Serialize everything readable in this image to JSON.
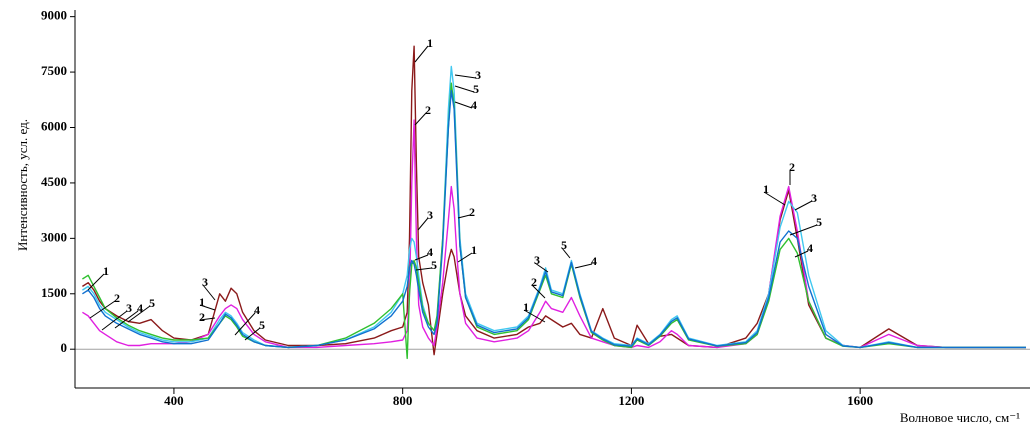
{
  "chart_data": {
    "type": "line",
    "x_label": "Волновое число,  см⁻¹",
    "y_label": "Интенсивность,  усл. ед.",
    "xlim": [
      227,
      1897
    ],
    "ylim": [
      -1050,
      9180
    ],
    "xticks": [
      400,
      800,
      1200,
      1600
    ],
    "yticks": [
      0,
      1500,
      3000,
      4500,
      6000,
      7500,
      9000
    ],
    "x": [
      240,
      250,
      260,
      270,
      280,
      300,
      320,
      340,
      360,
      380,
      400,
      430,
      460,
      480,
      490,
      500,
      510,
      520,
      540,
      560,
      600,
      650,
      700,
      750,
      780,
      800,
      808,
      812,
      816,
      820,
      824,
      828,
      835,
      845,
      855,
      860,
      870,
      880,
      885,
      890,
      895,
      900,
      910,
      930,
      960,
      1000,
      1020,
      1040,
      1050,
      1060,
      1080,
      1095,
      1110,
      1130,
      1150,
      1170,
      1200,
      1210,
      1230,
      1250,
      1270,
      1280,
      1300,
      1350,
      1400,
      1420,
      1440,
      1460,
      1475,
      1490,
      1510,
      1540,
      1570,
      1600,
      1650,
      1700,
      1750,
      1800,
      1850,
      1890
    ],
    "series": [
      {
        "name": "1",
        "color": "#8b1a1a",
        "values": [
          1700,
          1800,
          1600,
          1300,
          1100,
          900,
          750,
          700,
          800,
          500,
          300,
          250,
          400,
          1500,
          1300,
          1650,
          1500,
          1000,
          500,
          250,
          100,
          100,
          150,
          300,
          500,
          600,
          1000,
          3000,
          7000,
          8200,
          5000,
          2500,
          1800,
          1200,
          -150,
          400,
          1500,
          2400,
          2700,
          2500,
          2000,
          1500,
          900,
          500,
          300,
          400,
          600,
          700,
          900,
          800,
          600,
          700,
          400,
          300,
          1100,
          300,
          100,
          650,
          150,
          350,
          400,
          300,
          100,
          50,
          300,
          700,
          1500,
          3500,
          4300,
          3000,
          1200,
          300,
          100,
          50,
          550,
          100,
          50,
          50,
          50,
          50
        ]
      },
      {
        "name": "2",
        "color": "#e020e0",
        "values": [
          1000,
          900,
          700,
          500,
          400,
          200,
          100,
          100,
          150,
          150,
          150,
          200,
          400,
          900,
          1100,
          1200,
          1100,
          800,
          400,
          200,
          50,
          50,
          100,
          150,
          200,
          250,
          500,
          1500,
          4500,
          6200,
          3000,
          1200,
          600,
          300,
          100,
          600,
          1800,
          3500,
          4400,
          3800,
          2500,
          1500,
          700,
          300,
          200,
          300,
          500,
          1000,
          1300,
          1100,
          1000,
          1400,
          900,
          300,
          200,
          100,
          50,
          100,
          50,
          200,
          500,
          400,
          100,
          50,
          150,
          400,
          1500,
          3600,
          4400,
          3200,
          1300,
          300,
          100,
          50,
          400,
          100,
          50,
          50,
          50,
          50
        ]
      },
      {
        "name": "3",
        "color": "#40c8f0",
        "values": [
          1600,
          1700,
          1500,
          1200,
          1000,
          800,
          600,
          450,
          350,
          250,
          200,
          200,
          300,
          800,
          1000,
          900,
          700,
          450,
          250,
          100,
          50,
          100,
          250,
          600,
          1000,
          1500,
          2000,
          2700,
          3000,
          2900,
          2500,
          2000,
          1200,
          700,
          500,
          800,
          3000,
          6500,
          7650,
          7000,
          5000,
          3000,
          1500,
          700,
          500,
          600,
          900,
          1700,
          2200,
          1600,
          1500,
          2400,
          1500,
          500,
          300,
          150,
          100,
          300,
          150,
          400,
          800,
          900,
          300,
          100,
          200,
          500,
          1500,
          3300,
          4000,
          3700,
          2000,
          500,
          100,
          50,
          200,
          50,
          50,
          50,
          50,
          50
        ]
      },
      {
        "name": "4",
        "color": "#30c030",
        "values": [
          1900,
          2000,
          1700,
          1400,
          1100,
          850,
          650,
          500,
          400,
          300,
          250,
          250,
          300,
          700,
          900,
          800,
          600,
          350,
          200,
          100,
          50,
          100,
          300,
          700,
          1100,
          1500,
          -250,
          1500,
          2300,
          2400,
          2200,
          1800,
          1100,
          700,
          500,
          900,
          3000,
          6000,
          7200,
          6600,
          4800,
          2800,
          1400,
          600,
          400,
          500,
          800,
          1600,
          2000,
          1500,
          1400,
          2300,
          1400,
          450,
          250,
          100,
          50,
          250,
          100,
          350,
          700,
          800,
          250,
          80,
          150,
          400,
          1300,
          2700,
          3000,
          2600,
          1300,
          300,
          80,
          50,
          150,
          50,
          50,
          50,
          50,
          50
        ]
      },
      {
        "name": "5",
        "color": "#1070d0",
        "values": [
          1500,
          1600,
          1400,
          1100,
          900,
          700,
          550,
          400,
          300,
          200,
          150,
          150,
          250,
          700,
          950,
          850,
          650,
          400,
          200,
          100,
          50,
          100,
          250,
          550,
          900,
          1300,
          1700,
          2200,
          2400,
          2300,
          2000,
          1600,
          1000,
          600,
          400,
          700,
          2800,
          6000,
          7000,
          6500,
          4600,
          2800,
          1400,
          650,
          450,
          550,
          850,
          1650,
          2100,
          1550,
          1450,
          2350,
          1450,
          480,
          280,
          120,
          80,
          280,
          120,
          380,
          750,
          850,
          280,
          90,
          180,
          450,
          1400,
          2900,
          3200,
          3000,
          1700,
          400,
          90,
          50,
          180,
          50,
          50,
          50,
          50,
          50
        ]
      }
    ],
    "annotations": [
      "1",
      "2",
      "3",
      "4",
      "5",
      "3",
      "1",
      "2",
      "4",
      "5",
      "1",
      "2",
      "3",
      "4",
      "5",
      "3",
      "5",
      "4",
      "2",
      "1",
      "1",
      "2",
      "3",
      "5",
      "4",
      "1",
      "2",
      "3",
      "5",
      "4"
    ]
  }
}
